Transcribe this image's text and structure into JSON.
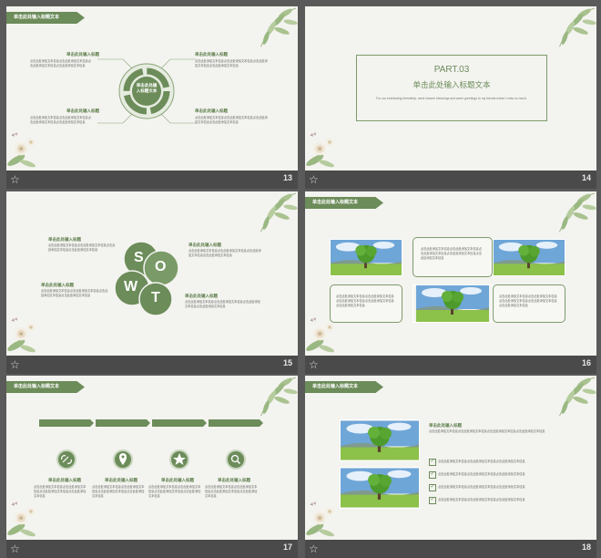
{
  "colors": {
    "accent": "#6c8c5a",
    "accent_light": "#8aa57a",
    "bg": "#f3f3ef"
  },
  "slides": [
    {
      "num": "13",
      "banner": "单击此处输入标题文本",
      "center": "单击此处输入标题文本",
      "items": [
        {
          "title": "单击此处输入标题",
          "body": "点击此处添加文本信息点击此处添加文本信息点击此处添加文本信息点击此处添加文本信息"
        },
        {
          "title": "单击此处输入标题",
          "body": "点击此处添加文本信息点击此处添加文本信息点击此处添加文本信息点击此处添加文本信息"
        },
        {
          "title": "单击此处输入标题",
          "body": "点击此处添加文本信息点击此处添加文本信息点击此处添加文本信息点击此处添加文本信息"
        },
        {
          "title": "单击此处输入标题",
          "body": "点击此处添加文本信息点击此处添加文本信息点击此处添加文本信息点击此处添加文本信息"
        }
      ]
    },
    {
      "num": "14",
      "part": "PART.03",
      "title": "单击此处输入标题文本",
      "subtitle": "For our everlasting friendship, send sincere blessings and warm greetings to my friends whom I miss so much."
    },
    {
      "num": "15",
      "letters": [
        "S",
        "O",
        "W",
        "T"
      ],
      "items": [
        {
          "title": "单击此处输入标题",
          "body": "点击此处添加文本信息点击此处添加文本信息点击此处添加文本信息点击此处添加文本信息"
        },
        {
          "title": "单击此处输入标题",
          "body": "点击此处添加文本信息点击此处添加文本信息点击此处添加文本信息点击此处添加文本信息"
        },
        {
          "title": "单击此处输入标题",
          "body": "点击此处添加文本信息点击此处添加文本信息点击此处添加文本信息点击此处添加文本信息"
        },
        {
          "title": "单击此处输入标题",
          "body": "点击此处添加文本信息点击此处添加文本信息点击此处添加文本信息点击此处添加文本信息"
        }
      ]
    },
    {
      "num": "16",
      "banner": "单击此处输入标题文本",
      "body": "点击此处添加文本信息点击此处添加文本信息点击此处添加文本信息点击此处添加文本信息点击此处添加文本信息"
    },
    {
      "num": "17",
      "banner": "单击此处输入标题文本",
      "items": [
        {
          "title": "单击此处输入标题",
          "body": "点击此处添加文本信息点击此处添加文本信息点击此处添加文本信息点击此处添加文本信息"
        },
        {
          "title": "单击此处输入标题",
          "body": "点击此处添加文本信息点击此处添加文本信息点击此处添加文本信息点击此处添加文本信息"
        },
        {
          "title": "单击此处输入标题",
          "body": "点击此处添加文本信息点击此处添加文本信息点击此处添加文本信息点击此处添加文本信息"
        },
        {
          "title": "单击此处输入标题",
          "body": "点击此处添加文本信息点击此处添加文本信息点击此处添加文本信息点击此处添加文本信息"
        }
      ],
      "icons": [
        "link-icon",
        "location-pin-icon",
        "star-icon",
        "search-icon"
      ]
    },
    {
      "num": "18",
      "banner": "单击此处输入标题文本",
      "heading": "单击此处输入标题",
      "body": "点击此处添加文本信息点击此处添加文本信息点击此处添加文本信息点击此处添加文本信息",
      "checks": [
        "点击此处添加文本信息点击此处添加文本信息点击此处添加文本信息",
        "点击此处添加文本信息点击此处添加文本信息点击此处添加文本信息",
        "点击此处添加文本信息点击此处添加文本信息点击此处添加文本信息",
        "点击此处添加文本信息点击此处添加文本信息点击此处添加文本信息"
      ]
    }
  ]
}
